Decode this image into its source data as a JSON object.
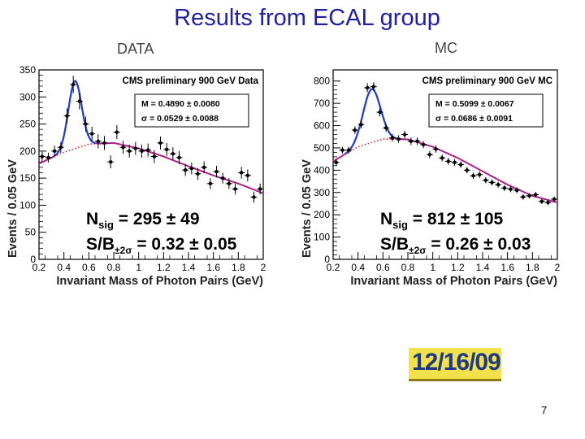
{
  "slide": {
    "title": "Results  from  ECAL group",
    "page_number": "7",
    "date_stamp": "12/16/09"
  },
  "chart_data": [
    {
      "type": "scatter",
      "panel_label": "DATA",
      "title": "CMS preliminary 900 GeV Data",
      "xlabel": "Invariant Mass of Photon Pairs (GeV)",
      "ylabel": "Events / 0.05 GeV",
      "xlim": [
        0.2,
        2.0
      ],
      "ylim": [
        0,
        350
      ],
      "xticks": [
        "0.2",
        "0.4",
        "0.6",
        "0.8",
        "1",
        "1.2",
        "1.4",
        "1.6",
        "1.8",
        "2"
      ],
      "yticks": [
        "0",
        "50",
        "100",
        "150",
        "200",
        "250",
        "300",
        "350"
      ],
      "fit_box": [
        "M = 0.4890 ± 0.0080",
        "σ = 0.0529 ± 0.0088"
      ],
      "annotation_nsig": {
        "main": "N",
        "sub": "sig",
        "value": " = 295 ± 49"
      },
      "annotation_sb": {
        "main": "S/B",
        "sub": "±2σ",
        "value": " = 0.32 ± 0.05"
      },
      "points": [
        {
          "x": 0.225,
          "y": 190,
          "e": 9
        },
        {
          "x": 0.275,
          "y": 188,
          "e": 9
        },
        {
          "x": 0.325,
          "y": 200,
          "e": 10
        },
        {
          "x": 0.375,
          "y": 207,
          "e": 10
        },
        {
          "x": 0.425,
          "y": 265,
          "e": 14
        },
        {
          "x": 0.475,
          "y": 323,
          "e": 16
        },
        {
          "x": 0.525,
          "y": 292,
          "e": 15
        },
        {
          "x": 0.575,
          "y": 250,
          "e": 14
        },
        {
          "x": 0.625,
          "y": 232,
          "e": 13
        },
        {
          "x": 0.675,
          "y": 218,
          "e": 13
        },
        {
          "x": 0.725,
          "y": 215,
          "e": 13
        },
        {
          "x": 0.775,
          "y": 180,
          "e": 12
        },
        {
          "x": 0.825,
          "y": 235,
          "e": 13
        },
        {
          "x": 0.875,
          "y": 207,
          "e": 12
        },
        {
          "x": 0.925,
          "y": 200,
          "e": 12
        },
        {
          "x": 0.975,
          "y": 205,
          "e": 12
        },
        {
          "x": 1.025,
          "y": 200,
          "e": 12
        },
        {
          "x": 1.075,
          "y": 202,
          "e": 12
        },
        {
          "x": 1.125,
          "y": 190,
          "e": 12
        },
        {
          "x": 1.175,
          "y": 215,
          "e": 12
        },
        {
          "x": 1.225,
          "y": 203,
          "e": 12
        },
        {
          "x": 1.275,
          "y": 195,
          "e": 12
        },
        {
          "x": 1.325,
          "y": 188,
          "e": 12
        },
        {
          "x": 1.375,
          "y": 165,
          "e": 11
        },
        {
          "x": 1.425,
          "y": 168,
          "e": 11
        },
        {
          "x": 1.475,
          "y": 158,
          "e": 11
        },
        {
          "x": 1.525,
          "y": 170,
          "e": 11
        },
        {
          "x": 1.575,
          "y": 140,
          "e": 10
        },
        {
          "x": 1.625,
          "y": 162,
          "e": 11
        },
        {
          "x": 1.675,
          "y": 150,
          "e": 10
        },
        {
          "x": 1.725,
          "y": 140,
          "e": 10
        },
        {
          "x": 1.775,
          "y": 130,
          "e": 10
        },
        {
          "x": 1.825,
          "y": 160,
          "e": 11
        },
        {
          "x": 1.875,
          "y": 155,
          "e": 11
        },
        {
          "x": 1.925,
          "y": 115,
          "e": 10
        },
        {
          "x": 1.975,
          "y": 130,
          "e": 10
        }
      ],
      "fit": {
        "M": 0.489,
        "sigma": 0.0529,
        "amp": 125,
        "bkg": [
          [
            0.2,
            177
          ],
          [
            0.4,
            198
          ],
          [
            0.6,
            213
          ],
          [
            0.8,
            215
          ],
          [
            1.0,
            205
          ],
          [
            1.2,
            190
          ],
          [
            1.4,
            172
          ],
          [
            1.6,
            155
          ],
          [
            1.8,
            140
          ],
          [
            2.0,
            122
          ]
        ]
      },
      "colors": {
        "signal_fit": "#1f3fd6",
        "total_fit": "#b0208a",
        "background": "#e02020",
        "points": "#000000"
      }
    },
    {
      "type": "scatter",
      "panel_label": "MC",
      "title": "CMS preliminary 900 GeV MC",
      "xlabel": "Invariant Mass of Photon Pairs (GeV)",
      "ylabel": "Events / 0.05 GeV",
      "xlim": [
        0.2,
        2.0
      ],
      "ylim": [
        0,
        850
      ],
      "xticks": [
        "0.2",
        "0.4",
        "0.6",
        "0.8",
        "1",
        "1.2",
        "1.4",
        "1.6",
        "1.8",
        "2"
      ],
      "yticks": [
        "0",
        "100",
        "200",
        "300",
        "400",
        "500",
        "600",
        "700",
        "800"
      ],
      "fit_box": [
        "M = 0.5099 ± 0.0067",
        "σ = 0.0686 ± 0.0091"
      ],
      "annotation_nsig": {
        "main": "N",
        "sub": "sig",
        "value": " = 812 ± 105"
      },
      "annotation_sb": {
        "main": "S/B",
        "sub": "±2σ",
        "value": " = 0.26 ± 0.03"
      },
      "points": [
        {
          "x": 0.225,
          "y": 435,
          "e": 14
        },
        {
          "x": 0.275,
          "y": 490,
          "e": 15
        },
        {
          "x": 0.325,
          "y": 490,
          "e": 15
        },
        {
          "x": 0.375,
          "y": 580,
          "e": 17
        },
        {
          "x": 0.425,
          "y": 605,
          "e": 17
        },
        {
          "x": 0.475,
          "y": 770,
          "e": 20
        },
        {
          "x": 0.525,
          "y": 775,
          "e": 20
        },
        {
          "x": 0.575,
          "y": 660,
          "e": 19
        },
        {
          "x": 0.625,
          "y": 590,
          "e": 18
        },
        {
          "x": 0.675,
          "y": 545,
          "e": 17
        },
        {
          "x": 0.725,
          "y": 540,
          "e": 17
        },
        {
          "x": 0.775,
          "y": 560,
          "e": 17
        },
        {
          "x": 0.825,
          "y": 530,
          "e": 17
        },
        {
          "x": 0.875,
          "y": 530,
          "e": 17
        },
        {
          "x": 0.925,
          "y": 515,
          "e": 16
        },
        {
          "x": 0.975,
          "y": 470,
          "e": 16
        },
        {
          "x": 1.025,
          "y": 495,
          "e": 16
        },
        {
          "x": 1.075,
          "y": 455,
          "e": 15
        },
        {
          "x": 1.125,
          "y": 440,
          "e": 15
        },
        {
          "x": 1.175,
          "y": 435,
          "e": 15
        },
        {
          "x": 1.225,
          "y": 425,
          "e": 15
        },
        {
          "x": 1.275,
          "y": 400,
          "e": 14
        },
        {
          "x": 1.325,
          "y": 375,
          "e": 14
        },
        {
          "x": 1.375,
          "y": 380,
          "e": 14
        },
        {
          "x": 1.425,
          "y": 355,
          "e": 14
        },
        {
          "x": 1.475,
          "y": 345,
          "e": 13
        },
        {
          "x": 1.525,
          "y": 335,
          "e": 13
        },
        {
          "x": 1.575,
          "y": 320,
          "e": 13
        },
        {
          "x": 1.625,
          "y": 315,
          "e": 13
        },
        {
          "x": 1.675,
          "y": 310,
          "e": 13
        },
        {
          "x": 1.725,
          "y": 280,
          "e": 12
        },
        {
          "x": 1.775,
          "y": 285,
          "e": 12
        },
        {
          "x": 1.825,
          "y": 290,
          "e": 12
        },
        {
          "x": 1.875,
          "y": 260,
          "e": 12
        },
        {
          "x": 1.925,
          "y": 255,
          "e": 12
        },
        {
          "x": 1.975,
          "y": 270,
          "e": 12
        }
      ],
      "fit": {
        "M": 0.5099,
        "sigma": 0.0686,
        "amp": 240,
        "bkg": [
          [
            0.2,
            440
          ],
          [
            0.4,
            505
          ],
          [
            0.6,
            540
          ],
          [
            0.8,
            538
          ],
          [
            1.0,
            505
          ],
          [
            1.2,
            455
          ],
          [
            1.4,
            395
          ],
          [
            1.6,
            335
          ],
          [
            1.8,
            285
          ],
          [
            2.0,
            255
          ]
        ]
      },
      "colors": {
        "signal_fit": "#1f3fd6",
        "total_fit": "#b0208a",
        "background": "#e02020",
        "points": "#000000"
      }
    }
  ]
}
